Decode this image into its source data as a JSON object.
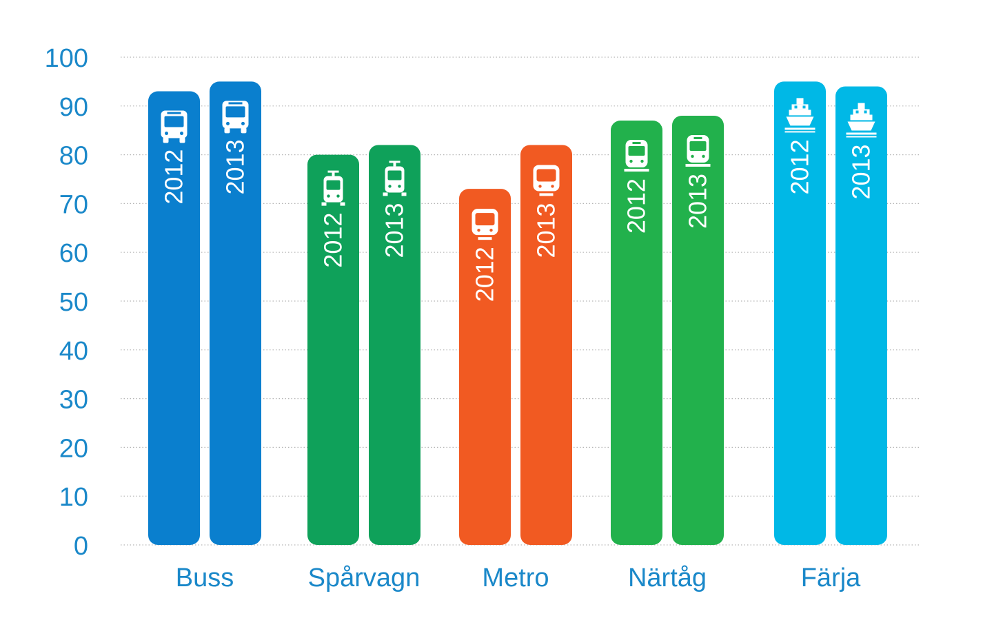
{
  "chart_data": {
    "type": "bar",
    "categories": [
      "Buss",
      "Spårvagn",
      "Metro",
      "Närtåg",
      "Färja"
    ],
    "series": [
      {
        "values": [
          93,
          80,
          73,
          87,
          95
        ]
      },
      {
        "values": [
          95,
          82,
          82,
          88,
          94
        ]
      }
    ],
    "bar_labels": [
      "2012",
      "2013"
    ],
    "category_colors": [
      "#0a7fce",
      "#0fa15a",
      "#f15a22",
      "#22b14c",
      "#00b8e6"
    ],
    "category_icons": [
      "bus-icon",
      "tram-icon",
      "metro-icon",
      "train-icon",
      "ferry-icon"
    ],
    "y_ticks": [
      "0",
      "10",
      "20",
      "30",
      "40",
      "50",
      "60",
      "70",
      "80",
      "90",
      "100"
    ],
    "ylim": [
      0,
      100
    ],
    "grid": true,
    "legend": "none"
  }
}
